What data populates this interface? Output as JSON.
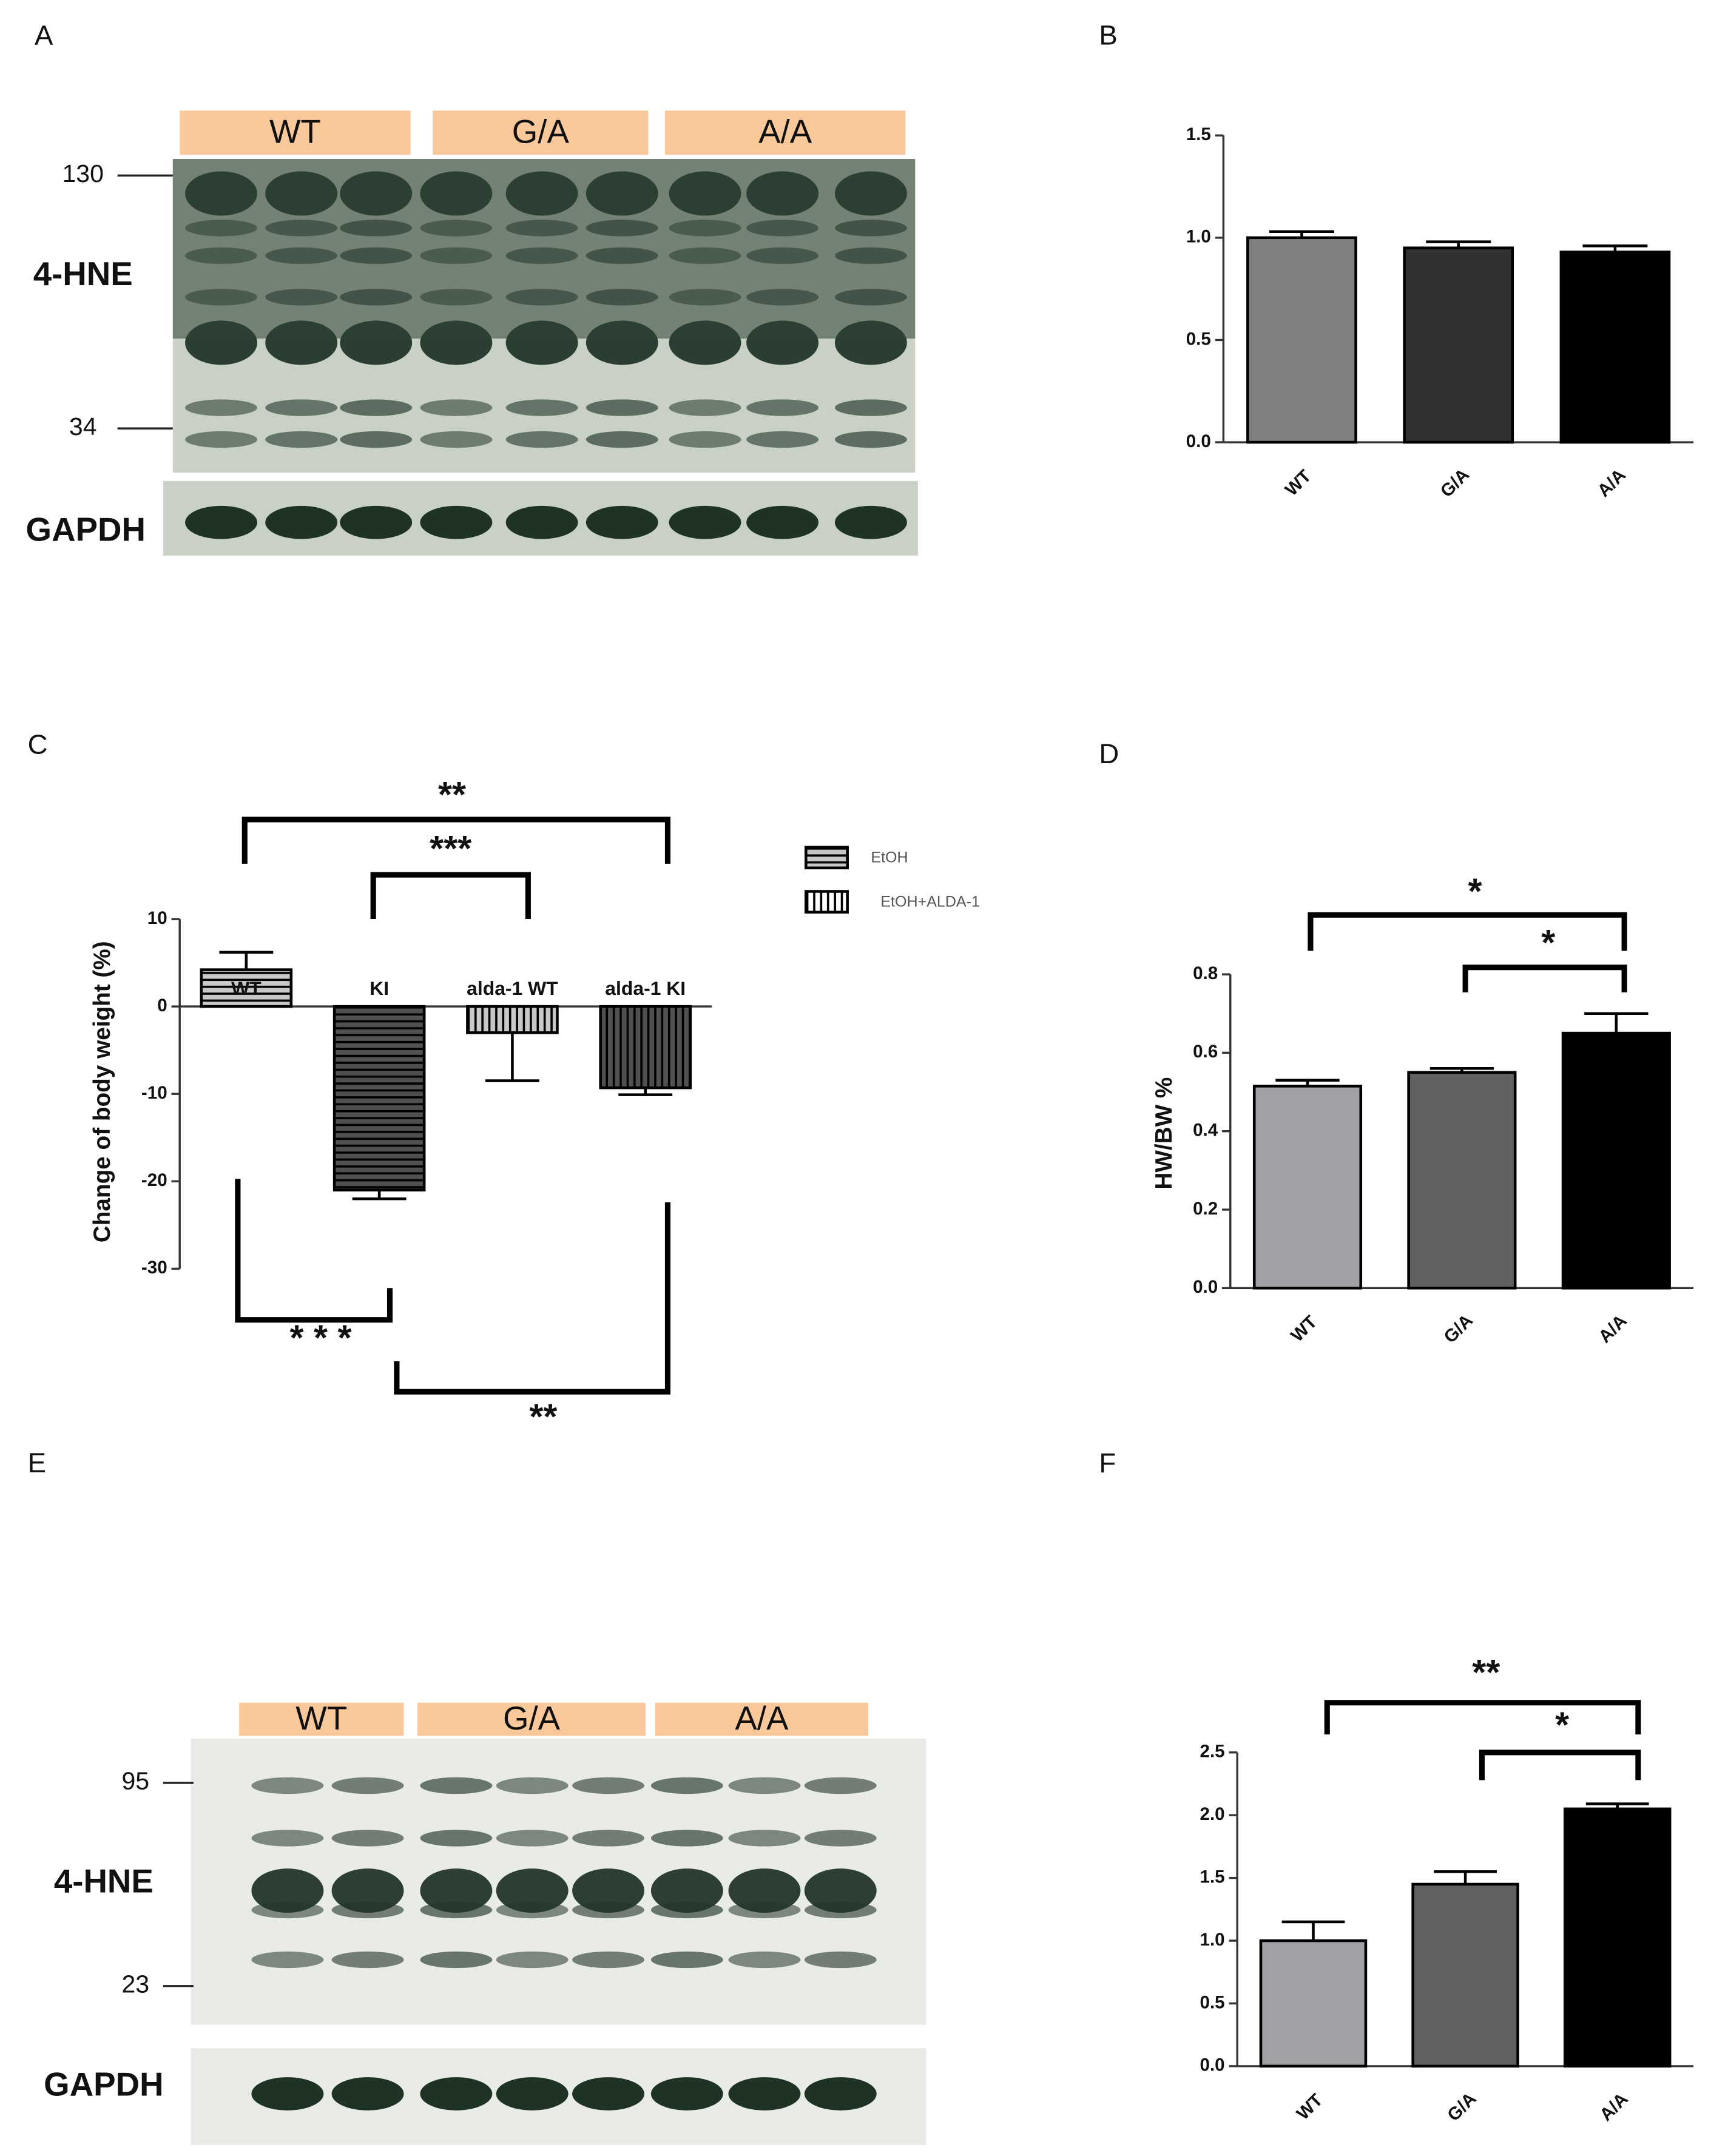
{
  "panel_labels": [
    "A",
    "B",
    "C",
    "D",
    "E",
    "F"
  ],
  "blots": [
    {
      "groups": [
        "WT",
        "G/A",
        "A/A"
      ],
      "markers": [
        "130",
        "34"
      ],
      "target": "4-HNE",
      "loading": "GAPDH"
    },
    {
      "groups": [
        "WT",
        "G/A",
        "A/A"
      ],
      "markers": [
        "95",
        "23"
      ],
      "target": "4-HNE",
      "loading": "GAPDH"
    }
  ],
  "chart_data": [
    {
      "type": "bar",
      "categories": [
        "WT",
        "G/A",
        "A/A"
      ],
      "values": [
        1.0,
        0.95,
        0.93
      ],
      "errors": [
        0.03,
        0.03,
        0.03
      ],
      "colors": [
        "#808080",
        "#303030",
        "#000000"
      ],
      "ylim": [
        0,
        1.5
      ],
      "yticks": [
        {
          "value": 0,
          "label": "0.0"
        },
        {
          "value": 0.5,
          "label": "0.5"
        },
        {
          "value": 1,
          "label": "1.0"
        },
        {
          "value": 1.5,
          "label": "1.5"
        }
      ]
    },
    {
      "type": "pattern-bar",
      "ylabel": "Change of body weight (%)",
      "categories": [
        "WT",
        "KI",
        "alda-1 WT",
        "alda-1 KI"
      ],
      "values": [
        4.2,
        -21,
        -3,
        -9.3
      ],
      "errors": [
        2,
        1,
        5.5,
        0.8
      ],
      "colors": [
        "#c8c8c8",
        "#505050",
        "#c8c8c8",
        "#505050"
      ],
      "patterns": [
        "horizontal",
        "horizontal",
        "vertical",
        "vertical"
      ],
      "legend": [
        {
          "name": "EtOH",
          "pattern": "horizontal"
        },
        {
          "name": "EtOH+ALDA-1",
          "pattern": "vertical"
        }
      ],
      "ylim": [
        -30,
        10
      ],
      "yticks": [
        -30,
        -20,
        -10,
        0,
        10
      ],
      "annotations": [
        "**",
        "***",
        "* * *",
        "**"
      ]
    },
    {
      "type": "bar",
      "ylabel": "HW/BW %",
      "categories": [
        "WT",
        "G/A",
        "A/A"
      ],
      "values": [
        0.515,
        0.55,
        0.65
      ],
      "errors": [
        0.015,
        0.01,
        0.05
      ],
      "colors": [
        "#a0a0a5",
        "#606060",
        "#000000"
      ],
      "ylim": [
        0,
        0.8
      ],
      "yticks": [
        {
          "value": 0,
          "label": "0.0"
        },
        {
          "value": 0.2,
          "label": "0.2"
        },
        {
          "value": 0.4,
          "label": "0.4"
        },
        {
          "value": 0.6,
          "label": "0.6"
        },
        {
          "value": 0.8,
          "label": "0.8"
        }
      ],
      "annotations": [
        "*",
        "*"
      ]
    },
    {
      "type": "bar",
      "categories": [
        "WT",
        "G/A",
        "A/A"
      ],
      "values": [
        1.0,
        1.45,
        2.05
      ],
      "errors": [
        0.15,
        0.1,
        0.04
      ],
      "colors": [
        "#a0a0a5",
        "#606060",
        "#000000"
      ],
      "ylim": [
        0,
        2.5
      ],
      "yticks": [
        {
          "value": 0,
          "label": "0.0"
        },
        {
          "value": 0.5,
          "label": "0.5"
        },
        {
          "value": 1,
          "label": "1.0"
        },
        {
          "value": 1.5,
          "label": "1.5"
        },
        {
          "value": 2,
          "label": "2.0"
        },
        {
          "value": 2.5,
          "label": "2.5"
        }
      ],
      "annotations": [
        "**",
        "*"
      ]
    }
  ]
}
